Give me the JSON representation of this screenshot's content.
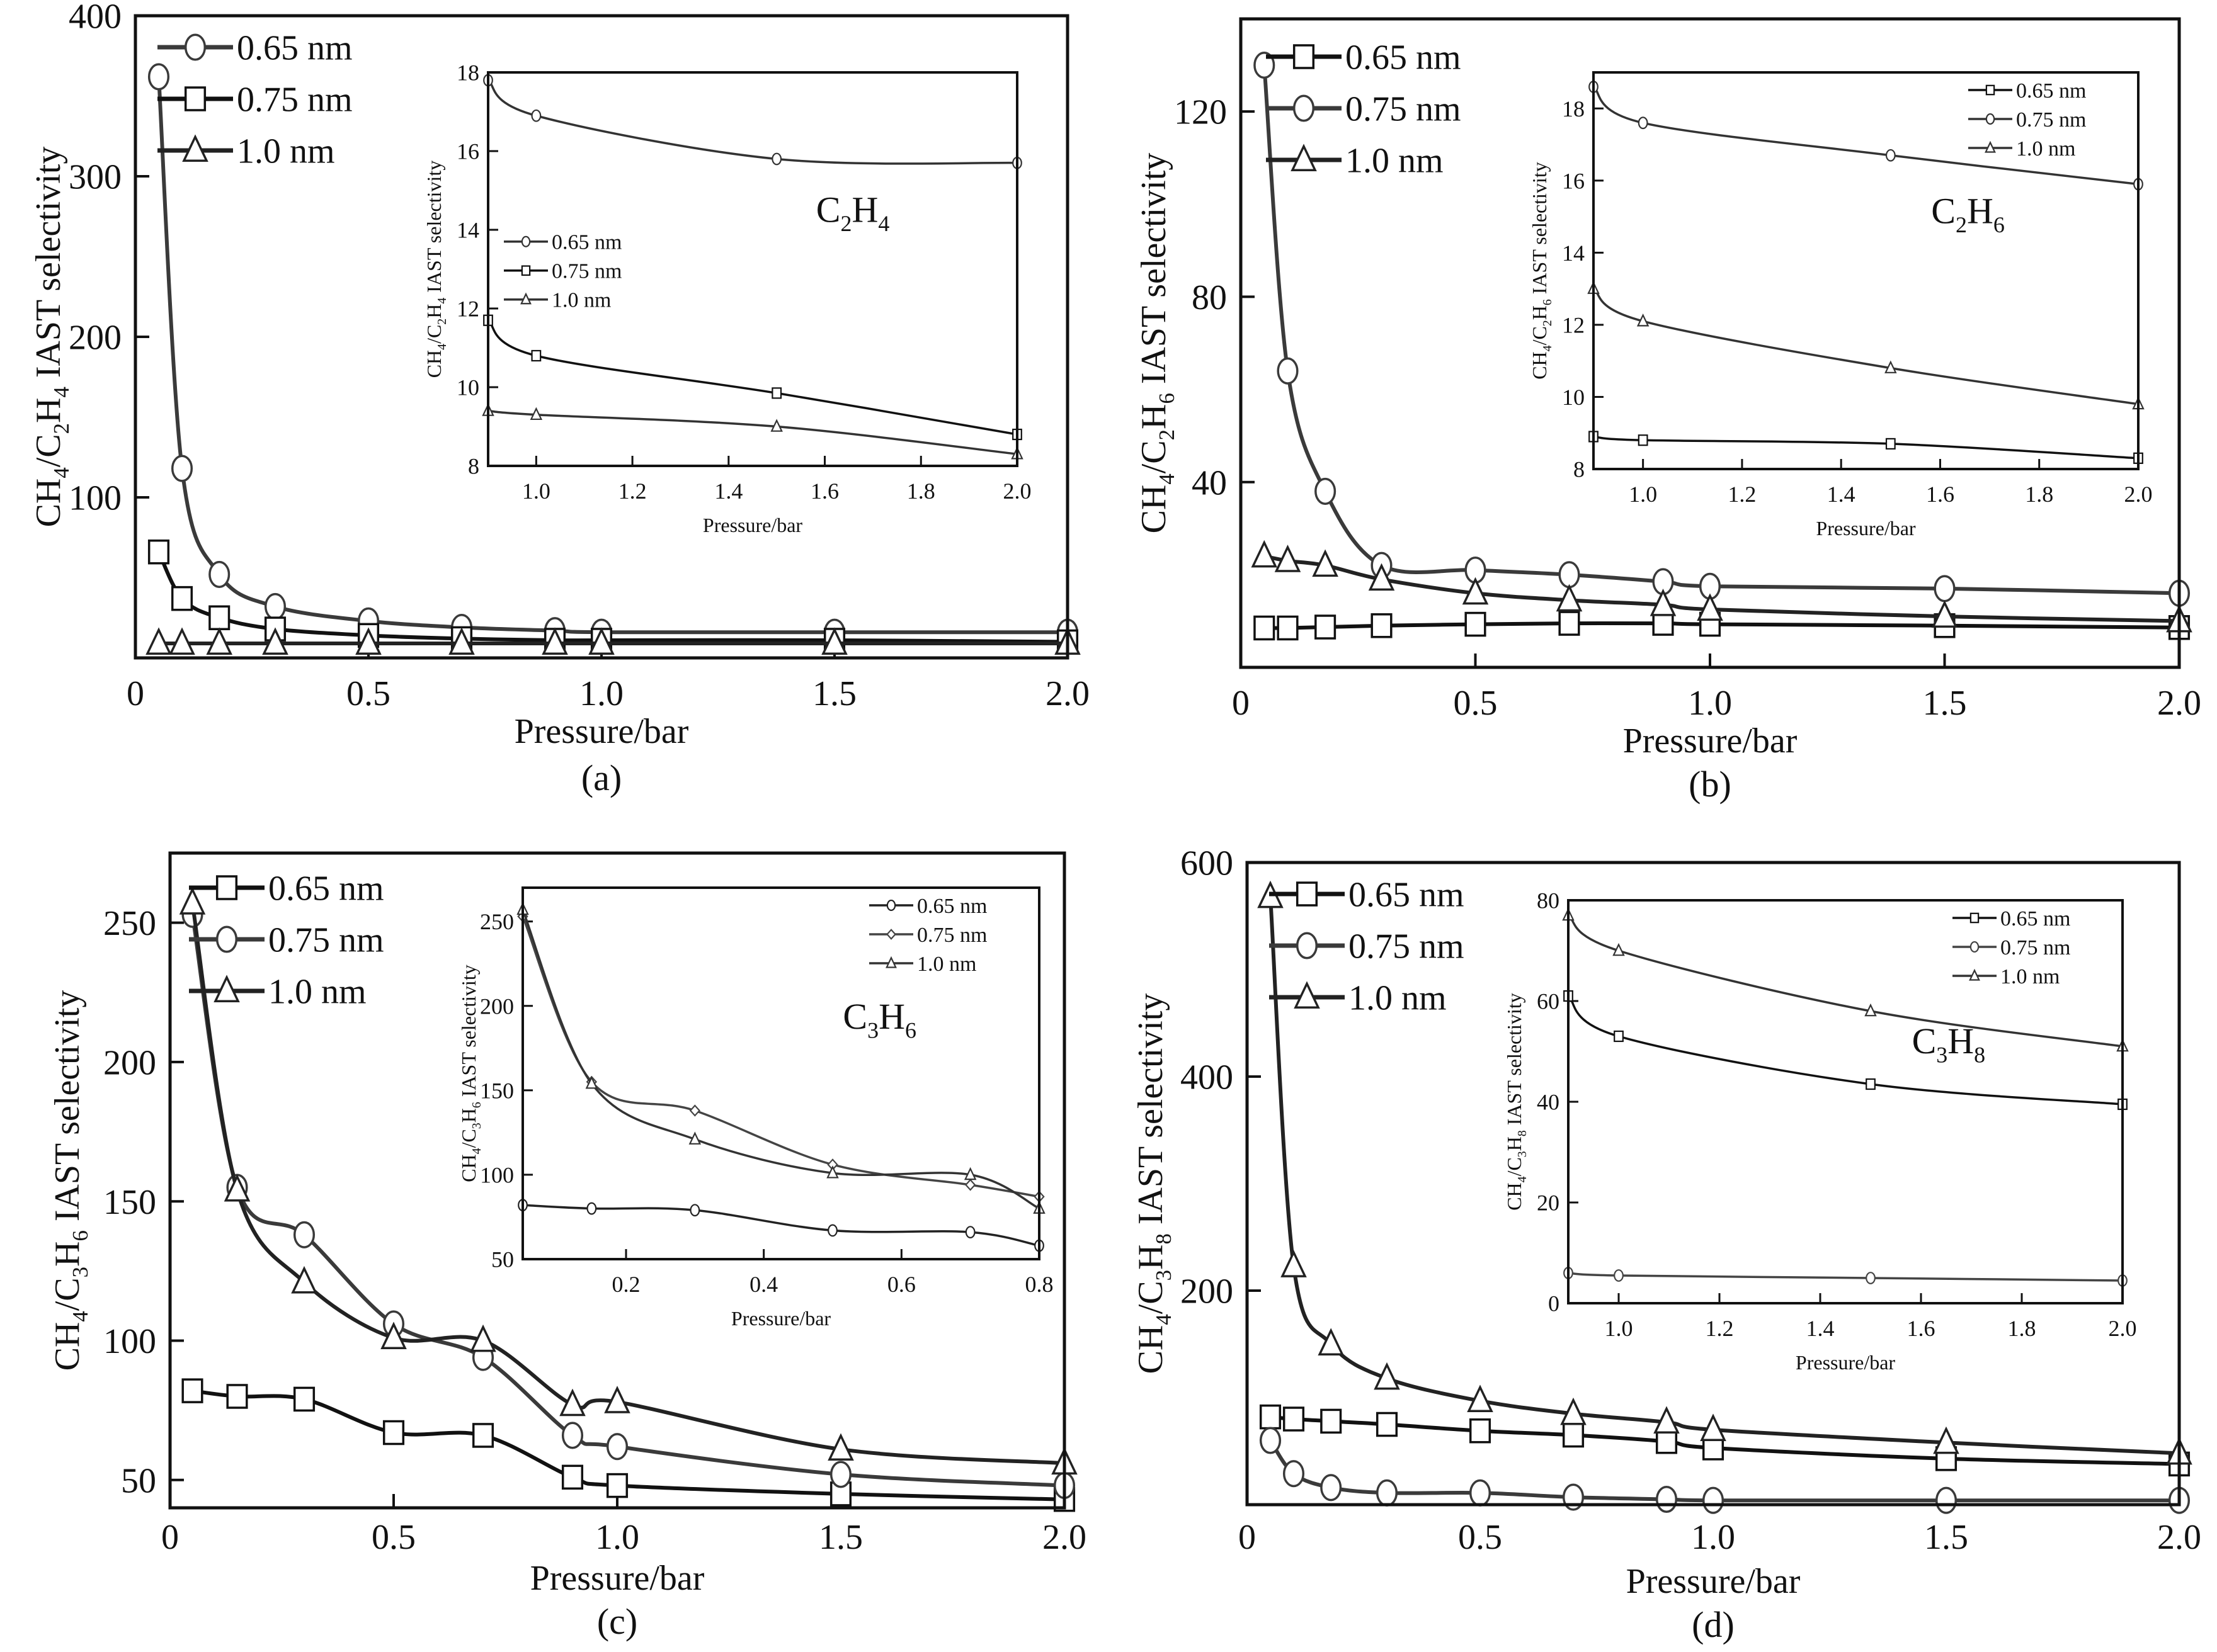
{
  "chart_data": [
    {
      "id": "a",
      "type": "line",
      "caption": "(a)",
      "xlabel": "Pressure/bar",
      "ylabel_parts": [
        "CH",
        "4",
        "/C",
        "2",
        "H",
        "4",
        " IAST selectivity"
      ],
      "xlim": [
        0,
        2.0
      ],
      "ylim": [
        0,
        400
      ],
      "xticks": [
        0,
        0.5,
        1.0,
        1.5,
        2.0
      ],
      "xtick_labels": [
        "0",
        "0.5",
        "1.0",
        "1.5",
        "2.0"
      ],
      "yticks": [
        100,
        200,
        300,
        400
      ],
      "ytick_labels": [
        "100",
        "200",
        "300",
        "400"
      ],
      "legend_position": "top-left",
      "series": [
        {
          "name": "0.65 nm",
          "marker": "circle",
          "color": "#3a3a3a",
          "x": [
            0.05,
            0.1,
            0.18,
            0.3,
            0.5,
            0.7,
            0.9,
            1.0,
            1.5,
            2.0
          ],
          "y": [
            362,
            118,
            52,
            32,
            23,
            19,
            17,
            16,
            16,
            16
          ]
        },
        {
          "name": "0.75 nm",
          "marker": "square",
          "color": "#111111",
          "x": [
            0.05,
            0.1,
            0.18,
            0.3,
            0.5,
            0.7,
            0.9,
            1.0,
            1.5,
            2.0
          ],
          "y": [
            66,
            37,
            25,
            18,
            14,
            12,
            11,
            11,
            11,
            10
          ]
        },
        {
          "name": "1.0 nm",
          "marker": "triangle",
          "color": "#222222",
          "x": [
            0.05,
            0.1,
            0.18,
            0.3,
            0.5,
            0.7,
            0.9,
            1.0,
            1.5,
            2.0
          ],
          "y": [
            9,
            9,
            9,
            9,
            9,
            9,
            9,
            9,
            9,
            9
          ]
        }
      ],
      "inset": {
        "label_parts": [
          "C",
          "2",
          "H",
          "4"
        ],
        "xlabel": "Pressure/bar",
        "ylabel_parts": [
          "CH",
          "4",
          "/C",
          "2",
          "H",
          "4",
          " IAST selectivity"
        ],
        "xlim": [
          0.9,
          2.0
        ],
        "ylim": [
          8,
          18
        ],
        "xticks": [
          1.0,
          1.2,
          1.4,
          1.6,
          1.8,
          2.0
        ],
        "xtick_labels": [
          "1.0",
          "1.2",
          "1.4",
          "1.6",
          "1.8",
          "2.0"
        ],
        "yticks": [
          8,
          10,
          12,
          14,
          16,
          18
        ],
        "ytick_labels": [
          "8",
          "10",
          "12",
          "14",
          "16",
          "18"
        ],
        "legend_position": "middle-left",
        "series": [
          {
            "name": "0.65 nm",
            "marker": "circle",
            "color": "#333333",
            "x": [
              0.9,
              1.0,
              1.5,
              2.0
            ],
            "y": [
              17.8,
              16.9,
              15.8,
              15.7
            ]
          },
          {
            "name": "0.75 nm",
            "marker": "square",
            "color": "#111111",
            "x": [
              0.9,
              1.0,
              1.5,
              2.0
            ],
            "y": [
              11.7,
              10.8,
              9.85,
              8.8
            ]
          },
          {
            "name": "1.0 nm",
            "marker": "triangle",
            "color": "#333333",
            "x": [
              0.9,
              1.0,
              1.5,
              2.0
            ],
            "y": [
              9.4,
              9.3,
              9.0,
              8.3
            ]
          }
        ]
      }
    },
    {
      "id": "b",
      "type": "line",
      "caption": "(b)",
      "xlabel": "Pressure/bar",
      "ylabel_parts": [
        "CH",
        "4",
        "/C",
        "2",
        "H",
        "6",
        " IAST selectivity"
      ],
      "xlim": [
        0,
        2.0
      ],
      "ylim": [
        0,
        140
      ],
      "xticks": [
        0,
        0.5,
        1.0,
        1.5,
        2.0
      ],
      "xtick_labels": [
        "0",
        "0.5",
        "1.0",
        "1.5",
        "2.0"
      ],
      "yticks": [
        40,
        80,
        120
      ],
      "ytick_labels": [
        "40",
        "80",
        "120"
      ],
      "legend_position": "top-left",
      "series": [
        {
          "name": "0.65 nm",
          "marker": "square",
          "color": "#111111",
          "x": [
            0.05,
            0.1,
            0.18,
            0.3,
            0.5,
            0.7,
            0.9,
            1.0,
            1.5,
            2.0
          ],
          "y": [
            8.5,
            8.5,
            8.7,
            9.0,
            9.3,
            9.5,
            9.5,
            9.3,
            9.0,
            8.6
          ]
        },
        {
          "name": "0.75 nm",
          "marker": "circle",
          "color": "#3a3a3a",
          "x": [
            0.05,
            0.1,
            0.18,
            0.3,
            0.5,
            0.7,
            0.9,
            1.0,
            1.5,
            2.0
          ],
          "y": [
            130,
            64,
            38,
            22,
            21,
            20,
            18.5,
            17.5,
            17,
            16
          ]
        },
        {
          "name": "1.0 nm",
          "marker": "triangle",
          "color": "#222222",
          "x": [
            0.05,
            0.1,
            0.18,
            0.3,
            0.5,
            0.7,
            0.9,
            1.0,
            1.5,
            2.0
          ],
          "y": [
            24,
            23,
            22,
            19,
            16,
            14.5,
            13.5,
            12.5,
            11,
            10
          ]
        }
      ],
      "inset": {
        "label_parts": [
          "C",
          "2",
          "H",
          "6"
        ],
        "xlabel": "Pressure/bar",
        "ylabel_parts": [
          "CH",
          "4",
          "/C",
          "2",
          "H",
          "6",
          " IAST selectivity"
        ],
        "xlim": [
          0.9,
          2.0
        ],
        "ylim": [
          8,
          19
        ],
        "xticks": [
          1.0,
          1.2,
          1.4,
          1.6,
          1.8,
          2.0
        ],
        "xtick_labels": [
          "1.0",
          "1.2",
          "1.4",
          "1.6",
          "1.8",
          "2.0"
        ],
        "yticks": [
          8,
          10,
          12,
          14,
          16,
          18
        ],
        "ytick_labels": [
          "8",
          "10",
          "12",
          "14",
          "16",
          "18"
        ],
        "legend_position": "top-right",
        "series": [
          {
            "name": "0.65 nm",
            "marker": "square",
            "color": "#111111",
            "x": [
              0.9,
              1.0,
              1.5,
              2.0
            ],
            "y": [
              8.9,
              8.8,
              8.7,
              8.3
            ]
          },
          {
            "name": "0.75 nm",
            "marker": "circle",
            "color": "#333333",
            "x": [
              0.9,
              1.0,
              1.5,
              2.0
            ],
            "y": [
              18.6,
              17.6,
              16.7,
              15.9
            ]
          },
          {
            "name": "1.0 nm",
            "marker": "triangle",
            "color": "#333333",
            "x": [
              0.9,
              1.0,
              1.5,
              2.0
            ],
            "y": [
              13.0,
              12.1,
              10.8,
              9.8
            ]
          }
        ]
      }
    },
    {
      "id": "c",
      "type": "line",
      "caption": "(c)",
      "xlabel": "Pressure/bar",
      "ylabel_parts": [
        "CH",
        "4",
        "/C",
        "3",
        "H",
        "6",
        " IAST selectivity"
      ],
      "xlim": [
        0,
        2.0
      ],
      "ylim": [
        40,
        275
      ],
      "xticks": [
        0,
        0.5,
        1.0,
        1.5,
        2.0
      ],
      "xtick_labels": [
        "0",
        "0.5",
        "1.0",
        "1.5",
        "2.0"
      ],
      "yticks": [
        50,
        100,
        150,
        200,
        250
      ],
      "ytick_labels": [
        "50",
        "100",
        "150",
        "200",
        "250"
      ],
      "legend_position": "top-left",
      "series": [
        {
          "name": "0.65 nm",
          "marker": "square",
          "color": "#111111",
          "x": [
            0.05,
            0.15,
            0.3,
            0.5,
            0.7,
            0.9,
            1.0,
            1.5,
            2.0
          ],
          "y": [
            82,
            80,
            79,
            67,
            66,
            51,
            48,
            45,
            43
          ]
        },
        {
          "name": "0.75 nm",
          "marker": "circle",
          "color": "#3a3a3a",
          "x": [
            0.05,
            0.15,
            0.3,
            0.5,
            0.7,
            0.9,
            1.0,
            1.5,
            2.0
          ],
          "y": [
            253,
            155,
            138,
            106,
            94,
            66,
            62,
            52,
            48
          ]
        },
        {
          "name": "1.0 nm",
          "marker": "triangle",
          "color": "#222222",
          "x": [
            0.05,
            0.15,
            0.3,
            0.5,
            0.7,
            0.9,
            1.0,
            1.5,
            2.0
          ],
          "y": [
            257,
            154,
            121,
            101,
            100,
            77,
            78,
            61,
            56
          ]
        }
      ],
      "inset": {
        "label_parts": [
          "C",
          "3",
          "H",
          "6"
        ],
        "xlabel": "Pressure/bar",
        "ylabel_parts": [
          "CH",
          "4",
          "/C",
          "3",
          "H",
          "6",
          " IAST selectivity"
        ],
        "xlim": [
          0.05,
          0.8
        ],
        "ylim": [
          50,
          270
        ],
        "xticks": [
          0.2,
          0.4,
          0.6,
          0.8
        ],
        "xtick_labels": [
          "0.2",
          "0.4",
          "0.6",
          "0.8"
        ],
        "yticks": [
          50,
          100,
          150,
          200,
          250
        ],
        "ytick_labels": [
          "50",
          "100",
          "150",
          "200",
          "250"
        ],
        "legend_position": "top-right",
        "series": [
          {
            "name": "0.65 nm",
            "marker": "circle",
            "color": "#222222",
            "x": [
              0.05,
              0.15,
              0.3,
              0.5,
              0.7,
              0.8
            ],
            "y": [
              82,
              80,
              79,
              67,
              66,
              58
            ]
          },
          {
            "name": "0.75 nm",
            "marker": "diamond",
            "color": "#444444",
            "x": [
              0.05,
              0.15,
              0.3,
              0.5,
              0.7,
              0.8
            ],
            "y": [
              253,
              155,
              138,
              106,
              94,
              87
            ]
          },
          {
            "name": "1.0 nm",
            "marker": "triangle",
            "color": "#333333",
            "x": [
              0.05,
              0.15,
              0.3,
              0.5,
              0.7,
              0.8
            ],
            "y": [
              257,
              154,
              121,
              101,
              100,
              80
            ]
          }
        ]
      }
    },
    {
      "id": "d",
      "type": "line",
      "caption": "(d)",
      "xlabel": "Pressure/bar",
      "ylabel_parts": [
        "CH",
        "4",
        "/C",
        "3",
        "H",
        "8",
        " IAST selectivity"
      ],
      "xlim": [
        0,
        2.0
      ],
      "ylim": [
        0,
        600
      ],
      "xticks": [
        0,
        0.5,
        1.0,
        1.5,
        2.0
      ],
      "xtick_labels": [
        "0",
        "0.5",
        "1.0",
        "1.5",
        "2.0"
      ],
      "yticks": [
        200,
        400,
        600
      ],
      "ytick_labels": [
        "200",
        "400",
        "600"
      ],
      "legend_position": "top-left",
      "series": [
        {
          "name": "0.65 nm",
          "marker": "square",
          "color": "#111111",
          "x": [
            0.05,
            0.1,
            0.18,
            0.3,
            0.5,
            0.7,
            0.9,
            1.0,
            1.5,
            2.0
          ],
          "y": [
            82,
            80,
            78,
            75,
            69,
            65,
            59,
            53,
            43,
            38
          ]
        },
        {
          "name": "0.75 nm",
          "marker": "circle",
          "color": "#3a3a3a",
          "x": [
            0.05,
            0.1,
            0.18,
            0.3,
            0.5,
            0.7,
            0.9,
            1.0,
            1.5,
            2.0
          ],
          "y": [
            60,
            29,
            16,
            11,
            11,
            7,
            5,
            4,
            4,
            4
          ]
        },
        {
          "name": "1.0 nm",
          "marker": "triangle",
          "color": "#222222",
          "x": [
            0.05,
            0.1,
            0.18,
            0.3,
            0.5,
            0.7,
            0.9,
            1.0,
            1.5,
            2.0
          ],
          "y": [
            568,
            223,
            150,
            118,
            97,
            85,
            77,
            70,
            58,
            48
          ]
        }
      ],
      "inset": {
        "label_parts": [
          "C",
          "3",
          "H",
          "8"
        ],
        "xlabel": "Pressure/bar",
        "ylabel_parts": [
          "CH",
          "4",
          "/C",
          "3",
          "H",
          "8",
          " IAST selectivity"
        ],
        "xlim": [
          0.9,
          2.0
        ],
        "ylim": [
          0,
          80
        ],
        "xticks": [
          1.0,
          1.2,
          1.4,
          1.6,
          1.8,
          2.0
        ],
        "xtick_labels": [
          "1.0",
          "1.2",
          "1.4",
          "1.6",
          "1.8",
          "2.0"
        ],
        "yticks": [
          0,
          20,
          40,
          60,
          80
        ],
        "ytick_labels": [
          "0",
          "20",
          "40",
          "60",
          "80"
        ],
        "legend_position": "top-right",
        "series": [
          {
            "name": "0.65 nm",
            "marker": "square",
            "color": "#111111",
            "x": [
              0.9,
              1.0,
              1.5,
              2.0
            ],
            "y": [
              61,
              53,
              43.5,
              39.5
            ]
          },
          {
            "name": "0.75 nm",
            "marker": "circle",
            "color": "#444444",
            "x": [
              0.9,
              1.0,
              1.5,
              2.0
            ],
            "y": [
              6,
              5.5,
              5,
              4.5
            ]
          },
          {
            "name": "1.0 nm",
            "marker": "triangle",
            "color": "#333333",
            "x": [
              0.9,
              1.0,
              1.5,
              2.0
            ],
            "y": [
              77,
              70,
              58,
              51
            ]
          }
        ]
      }
    }
  ]
}
